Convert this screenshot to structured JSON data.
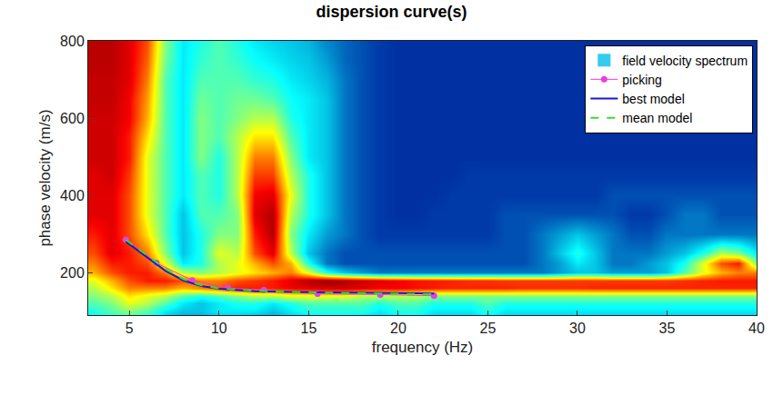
{
  "chart_data": {
    "type": "heatmap",
    "title": "dispersion curve(s)",
    "x_label": "frequency (Hz)",
    "y_label": "phase velocity (m/s)",
    "xlim": [
      2.7,
      40
    ],
    "ylim": [
      90,
      800
    ],
    "xticks": [
      5,
      10,
      15,
      20,
      25,
      30,
      35,
      40
    ],
    "yticks": [
      200,
      400,
      600,
      800
    ],
    "legend": "top right",
    "grid": false,
    "heatmap": {
      "name": "field velocity spectrum",
      "color": "#33ccee",
      "zlim": [
        0,
        1
      ],
      "x": [
        3,
        4,
        5,
        6,
        7,
        8,
        9,
        10,
        11,
        12,
        13,
        14,
        15,
        16,
        17,
        18,
        19,
        20,
        21,
        22,
        23,
        24,
        25,
        26,
        27,
        28,
        29,
        30,
        31,
        32,
        33,
        34,
        35,
        36,
        37,
        38,
        39,
        40
      ],
      "y": [
        80,
        100,
        120,
        140,
        160,
        180,
        200,
        225,
        250,
        300,
        350,
        400,
        450,
        500,
        550,
        600,
        650,
        700,
        750,
        800
      ],
      "z": [
        [
          0.35,
          0.4,
          0.45,
          0.4,
          0.3,
          0.25,
          0.25,
          0.3,
          0.3,
          0.25,
          0.25,
          0.3,
          0.3,
          0.35,
          0.35,
          0.3,
          0.3,
          0.35,
          0.35,
          0.3,
          0.3,
          0.3,
          0.35,
          0.3,
          0.3,
          0.3,
          0.3,
          0.3,
          0.3,
          0.3,
          0.3,
          0.3,
          0.3,
          0.3,
          0.3,
          0.3,
          0.3,
          0.3
        ],
        [
          0.4,
          0.45,
          0.5,
          0.45,
          0.35,
          0.3,
          0.3,
          0.35,
          0.35,
          0.35,
          0.3,
          0.35,
          0.4,
          0.4,
          0.4,
          0.4,
          0.35,
          0.4,
          0.4,
          0.35,
          0.35,
          0.35,
          0.4,
          0.35,
          0.35,
          0.35,
          0.35,
          0.35,
          0.35,
          0.35,
          0.35,
          0.35,
          0.35,
          0.35,
          0.35,
          0.35,
          0.35,
          0.35
        ],
        [
          0.45,
          0.5,
          0.6,
          0.55,
          0.45,
          0.35,
          0.3,
          0.35,
          0.4,
          0.4,
          0.35,
          0.4,
          0.45,
          0.45,
          0.45,
          0.45,
          0.4,
          0.45,
          0.45,
          0.4,
          0.4,
          0.4,
          0.45,
          0.4,
          0.4,
          0.4,
          0.4,
          0.4,
          0.4,
          0.4,
          0.4,
          0.4,
          0.4,
          0.4,
          0.4,
          0.4,
          0.4,
          0.4
        ],
        [
          0.5,
          0.55,
          0.65,
          0.6,
          0.55,
          0.45,
          0.4,
          0.45,
          0.5,
          0.55,
          0.55,
          0.6,
          0.6,
          0.6,
          0.6,
          0.55,
          0.55,
          0.55,
          0.55,
          0.5,
          0.5,
          0.5,
          0.5,
          0.5,
          0.5,
          0.5,
          0.5,
          0.5,
          0.5,
          0.5,
          0.5,
          0.5,
          0.5,
          0.5,
          0.5,
          0.5,
          0.5,
          0.5
        ],
        [
          0.55,
          0.65,
          0.75,
          0.75,
          0.75,
          0.7,
          0.75,
          0.8,
          0.85,
          0.85,
          0.85,
          0.88,
          0.9,
          0.92,
          0.92,
          0.9,
          0.88,
          0.88,
          0.86,
          0.85,
          0.84,
          0.84,
          0.84,
          0.84,
          0.83,
          0.83,
          0.83,
          0.83,
          0.84,
          0.84,
          0.84,
          0.84,
          0.84,
          0.84,
          0.84,
          0.84,
          0.84,
          0.84
        ],
        [
          0.6,
          0.7,
          0.8,
          0.85,
          0.85,
          0.8,
          0.75,
          0.75,
          0.8,
          0.82,
          0.85,
          0.9,
          0.95,
          0.97,
          0.95,
          0.92,
          0.9,
          0.88,
          0.86,
          0.85,
          0.84,
          0.83,
          0.83,
          0.82,
          0.82,
          0.82,
          0.82,
          0.82,
          0.82,
          0.82,
          0.82,
          0.82,
          0.82,
          0.83,
          0.84,
          0.85,
          0.85,
          0.85
        ],
        [
          0.7,
          0.8,
          0.85,
          0.85,
          0.75,
          0.55,
          0.5,
          0.55,
          0.6,
          0.65,
          0.7,
          0.75,
          0.6,
          0.4,
          0.3,
          0.25,
          0.2,
          0.2,
          0.2,
          0.2,
          0.2,
          0.2,
          0.2,
          0.2,
          0.2,
          0.2,
          0.25,
          0.3,
          0.3,
          0.25,
          0.25,
          0.25,
          0.3,
          0.45,
          0.6,
          0.7,
          0.75,
          0.75
        ],
        [
          0.75,
          0.85,
          0.85,
          0.8,
          0.6,
          0.35,
          0.4,
          0.55,
          0.6,
          0.7,
          0.8,
          0.7,
          0.4,
          0.2,
          0.15,
          0.15,
          0.15,
          0.15,
          0.15,
          0.15,
          0.15,
          0.15,
          0.15,
          0.15,
          0.15,
          0.2,
          0.25,
          0.35,
          0.3,
          0.2,
          0.2,
          0.25,
          0.3,
          0.4,
          0.6,
          0.8,
          0.85,
          0.5
        ],
        [
          0.8,
          0.9,
          0.85,
          0.75,
          0.5,
          0.3,
          0.4,
          0.6,
          0.55,
          0.8,
          0.9,
          0.55,
          0.3,
          0.2,
          0.15,
          0.15,
          0.15,
          0.15,
          0.15,
          0.15,
          0.15,
          0.15,
          0.15,
          0.15,
          0.15,
          0.2,
          0.3,
          0.4,
          0.3,
          0.2,
          0.2,
          0.2,
          0.25,
          0.3,
          0.4,
          0.55,
          0.5,
          0.35
        ],
        [
          0.85,
          0.9,
          0.8,
          0.65,
          0.45,
          0.3,
          0.4,
          0.5,
          0.5,
          0.85,
          0.95,
          0.5,
          0.35,
          0.25,
          0.2,
          0.15,
          0.12,
          0.12,
          0.12,
          0.12,
          0.12,
          0.12,
          0.12,
          0.15,
          0.15,
          0.2,
          0.25,
          0.3,
          0.25,
          0.2,
          0.15,
          0.15,
          0.2,
          0.2,
          0.2,
          0.2,
          0.2,
          0.2
        ],
        [
          0.9,
          0.9,
          0.8,
          0.6,
          0.45,
          0.3,
          0.45,
          0.45,
          0.5,
          0.9,
          0.95,
          0.55,
          0.4,
          0.3,
          0.2,
          0.15,
          0.12,
          0.1,
          0.1,
          0.12,
          0.12,
          0.12,
          0.12,
          0.15,
          0.15,
          0.15,
          0.15,
          0.15,
          0.15,
          0.15,
          0.12,
          0.12,
          0.15,
          0.2,
          0.2,
          0.15,
          0.15,
          0.15
        ],
        [
          0.9,
          0.9,
          0.8,
          0.6,
          0.45,
          0.35,
          0.45,
          0.4,
          0.55,
          0.88,
          0.9,
          0.6,
          0.4,
          0.3,
          0.2,
          0.15,
          0.12,
          0.1,
          0.1,
          0.1,
          0.12,
          0.12,
          0.12,
          0.12,
          0.12,
          0.12,
          0.12,
          0.12,
          0.12,
          0.15,
          0.15,
          0.15,
          0.15,
          0.15,
          0.15,
          0.15,
          0.15,
          0.15
        ],
        [
          0.9,
          0.92,
          0.82,
          0.6,
          0.45,
          0.35,
          0.45,
          0.4,
          0.55,
          0.82,
          0.82,
          0.55,
          0.4,
          0.3,
          0.2,
          0.15,
          0.12,
          0.1,
          0.1,
          0.1,
          0.1,
          0.12,
          0.12,
          0.12,
          0.12,
          0.12,
          0.12,
          0.12,
          0.12,
          0.12,
          0.12,
          0.12,
          0.12,
          0.12,
          0.12,
          0.12,
          0.12,
          0.12
        ],
        [
          0.92,
          0.92,
          0.85,
          0.6,
          0.45,
          0.35,
          0.5,
          0.4,
          0.55,
          0.75,
          0.75,
          0.5,
          0.35,
          0.3,
          0.2,
          0.15,
          0.12,
          0.1,
          0.1,
          0.1,
          0.1,
          0.1,
          0.1,
          0.1,
          0.1,
          0.1,
          0.1,
          0.1,
          0.1,
          0.1,
          0.1,
          0.1,
          0.1,
          0.1,
          0.1,
          0.1,
          0.1,
          0.1
        ],
        [
          0.92,
          0.92,
          0.85,
          0.65,
          0.45,
          0.35,
          0.5,
          0.45,
          0.55,
          0.65,
          0.65,
          0.45,
          0.35,
          0.3,
          0.2,
          0.15,
          0.12,
          0.1,
          0.1,
          0.1,
          0.1,
          0.1,
          0.1,
          0.1,
          0.1,
          0.1,
          0.1,
          0.1,
          0.1,
          0.1,
          0.1,
          0.1,
          0.1,
          0.1,
          0.1,
          0.1,
          0.1,
          0.1
        ],
        [
          0.92,
          0.92,
          0.88,
          0.7,
          0.45,
          0.35,
          0.5,
          0.45,
          0.5,
          0.55,
          0.55,
          0.4,
          0.35,
          0.3,
          0.2,
          0.15,
          0.12,
          0.1,
          0.1,
          0.1,
          0.1,
          0.1,
          0.1,
          0.1,
          0.1,
          0.1,
          0.1,
          0.1,
          0.1,
          0.1,
          0.1,
          0.1,
          0.1,
          0.1,
          0.1,
          0.1,
          0.1,
          0.1
        ],
        [
          0.93,
          0.93,
          0.88,
          0.72,
          0.45,
          0.35,
          0.48,
          0.45,
          0.48,
          0.48,
          0.45,
          0.38,
          0.35,
          0.3,
          0.2,
          0.15,
          0.12,
          0.1,
          0.1,
          0.1,
          0.1,
          0.1,
          0.1,
          0.1,
          0.1,
          0.1,
          0.1,
          0.1,
          0.1,
          0.1,
          0.1,
          0.1,
          0.1,
          0.1,
          0.1,
          0.1,
          0.1,
          0.1
        ],
        [
          0.93,
          0.93,
          0.9,
          0.75,
          0.45,
          0.35,
          0.45,
          0.45,
          0.45,
          0.42,
          0.4,
          0.35,
          0.32,
          0.28,
          0.2,
          0.15,
          0.12,
          0.1,
          0.1,
          0.1,
          0.1,
          0.1,
          0.1,
          0.1,
          0.1,
          0.1,
          0.1,
          0.1,
          0.1,
          0.1,
          0.1,
          0.1,
          0.1,
          0.1,
          0.1,
          0.1,
          0.1,
          0.1
        ],
        [
          0.94,
          0.94,
          0.9,
          0.78,
          0.48,
          0.35,
          0.42,
          0.45,
          0.42,
          0.38,
          0.35,
          0.32,
          0.3,
          0.25,
          0.18,
          0.15,
          0.12,
          0.1,
          0.1,
          0.1,
          0.1,
          0.1,
          0.1,
          0.1,
          0.1,
          0.1,
          0.1,
          0.1,
          0.1,
          0.1,
          0.1,
          0.1,
          0.1,
          0.1,
          0.1,
          0.1,
          0.1,
          0.1
        ],
        [
          0.94,
          0.94,
          0.9,
          0.8,
          0.5,
          0.35,
          0.4,
          0.45,
          0.4,
          0.35,
          0.32,
          0.3,
          0.28,
          0.22,
          0.18,
          0.15,
          0.12,
          0.1,
          0.1,
          0.1,
          0.1,
          0.1,
          0.1,
          0.1,
          0.1,
          0.1,
          0.1,
          0.1,
          0.1,
          0.1,
          0.1,
          0.1,
          0.1,
          0.1,
          0.1,
          0.1,
          0.1,
          0.1
        ]
      ]
    },
    "series": [
      {
        "name": "picking",
        "type": "scatter",
        "color": "#e83ee0",
        "marker": "circle",
        "line_style": "solid",
        "x": [
          4.8,
          6.5,
          8.5,
          10.5,
          12.5,
          15.5,
          19,
          22
        ],
        "values": [
          285,
          225,
          180,
          160,
          155,
          145,
          143,
          140
        ]
      },
      {
        "name": "best model",
        "type": "line",
        "color": "#1a1acc",
        "line_style": "solid",
        "x": [
          4.8,
          6,
          7,
          8,
          9,
          10,
          12,
          14,
          16,
          18,
          20,
          22
        ],
        "values": [
          280,
          240,
          205,
          180,
          165,
          158,
          152,
          150,
          149,
          148,
          147,
          146
        ]
      },
      {
        "name": "mean model",
        "type": "line",
        "color": "#33dd33",
        "line_style": "dashed",
        "x": [
          4.8,
          6,
          7,
          8,
          9,
          10,
          12,
          14,
          16,
          18,
          20,
          22
        ],
        "values": [
          285,
          245,
          210,
          183,
          167,
          159,
          153,
          150,
          148,
          146,
          145,
          144
        ]
      }
    ]
  }
}
